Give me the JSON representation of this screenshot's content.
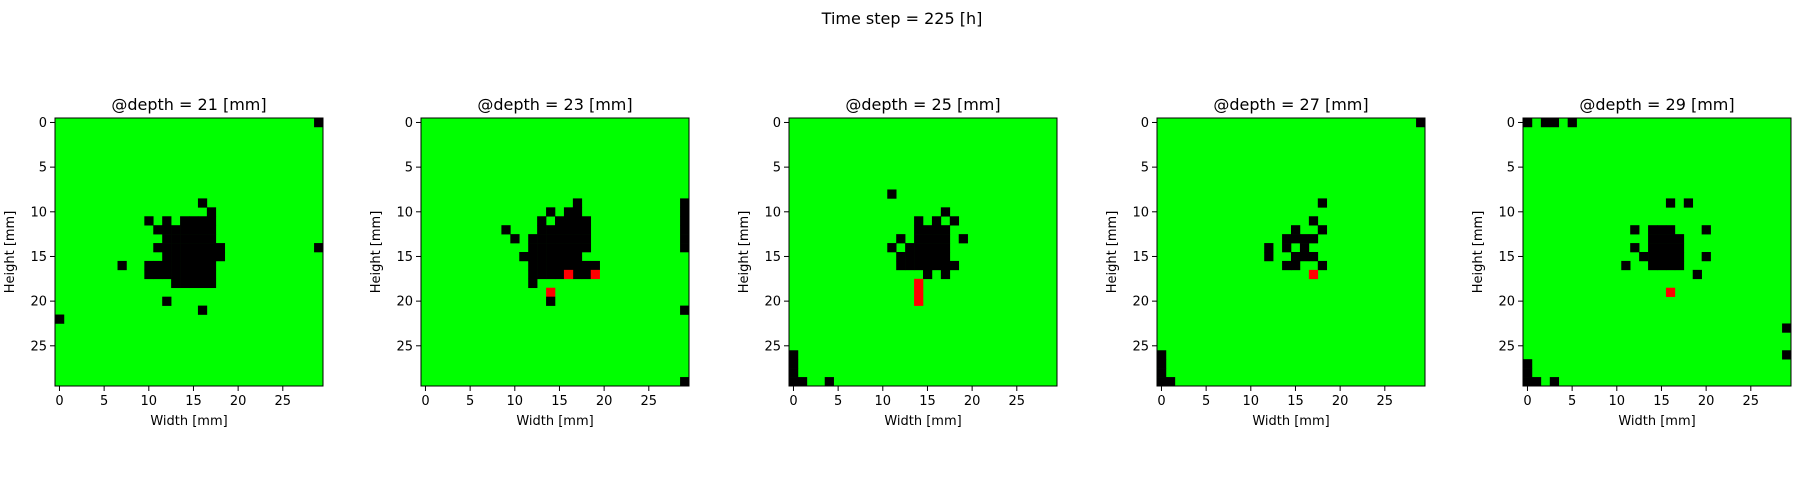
{
  "figure": {
    "suptitle": "Time step = 225 [h]"
  },
  "colors": {
    "healthy": "#00ff00",
    "damaged": "#000000",
    "new_damage": "#ff0000",
    "frame": "#000000",
    "background": "#ffffff"
  },
  "chart_data": [
    {
      "type": "heatmap",
      "title": "@depth = 21 [mm]",
      "xlabel": "Width [mm]",
      "ylabel": "Height [mm]",
      "grid_size": [
        30,
        30
      ],
      "xlim": [
        -0.5,
        29.5
      ],
      "ylim": [
        29.5,
        -0.5
      ],
      "xticks": [
        0,
        5,
        10,
        15,
        20,
        25
      ],
      "yticks": [
        0,
        5,
        10,
        15,
        20,
        25
      ],
      "grid": false,
      "background_value": "healthy",
      "cells": [
        {
          "value": "damaged",
          "x": [
            29
          ],
          "y": [
            0
          ]
        },
        {
          "value": "damaged",
          "x": [
            16
          ],
          "y": [
            9
          ]
        },
        {
          "value": "damaged",
          "x": [
            17
          ],
          "y": [
            10
          ]
        },
        {
          "value": "damaged",
          "x": [
            10,
            12,
            14,
            15,
            16,
            17
          ],
          "y": [
            11
          ]
        },
        {
          "value": "damaged",
          "x": [
            11,
            12,
            13,
            14,
            15,
            16,
            17
          ],
          "y": [
            12
          ]
        },
        {
          "value": "damaged",
          "x": [
            12,
            13,
            14,
            15,
            16,
            17
          ],
          "y": [
            13
          ]
        },
        {
          "value": "damaged",
          "x": [
            11,
            12,
            13,
            14,
            15,
            16,
            17,
            18
          ],
          "y": [
            14
          ]
        },
        {
          "value": "damaged",
          "x": [
            29
          ],
          "y": [
            14
          ]
        },
        {
          "value": "damaged",
          "x": [
            12,
            13,
            14,
            15,
            16,
            17,
            18
          ],
          "y": [
            15
          ]
        },
        {
          "value": "damaged",
          "x": [
            7
          ],
          "y": [
            16
          ]
        },
        {
          "value": "damaged",
          "x": [
            10,
            11,
            12,
            13,
            14,
            15,
            16,
            17
          ],
          "y": [
            16
          ]
        },
        {
          "value": "damaged",
          "x": [
            10,
            11,
            12,
            13,
            14,
            15,
            16,
            17
          ],
          "y": [
            17
          ]
        },
        {
          "value": "damaged",
          "x": [
            13,
            14,
            15,
            16,
            17
          ],
          "y": [
            18
          ]
        },
        {
          "value": "damaged",
          "x": [
            12
          ],
          "y": [
            20
          ]
        },
        {
          "value": "damaged",
          "x": [
            16
          ],
          "y": [
            21
          ]
        },
        {
          "value": "damaged",
          "x": [
            0
          ],
          "y": [
            22
          ]
        }
      ]
    },
    {
      "type": "heatmap",
      "title": "@depth = 23 [mm]",
      "xlabel": "Width [mm]",
      "ylabel": "Height [mm]",
      "grid_size": [
        30,
        30
      ],
      "xlim": [
        -0.5,
        29.5
      ],
      "ylim": [
        29.5,
        -0.5
      ],
      "xticks": [
        0,
        5,
        10,
        15,
        20,
        25
      ],
      "yticks": [
        0,
        5,
        10,
        15,
        20,
        25
      ],
      "grid": false,
      "background_value": "healthy",
      "cells": [
        {
          "value": "damaged",
          "x": [
            29
          ],
          "y": [
            9,
            10,
            11,
            12,
            13,
            14
          ]
        },
        {
          "value": "damaged",
          "x": [
            17
          ],
          "y": [
            9
          ]
        },
        {
          "value": "damaged",
          "x": [
            14,
            16,
            17
          ],
          "y": [
            10
          ]
        },
        {
          "value": "damaged",
          "x": [
            13,
            15,
            16,
            17,
            18
          ],
          "y": [
            11
          ]
        },
        {
          "value": "damaged",
          "x": [
            9,
            13,
            14,
            15,
            16,
            17,
            18
          ],
          "y": [
            12
          ]
        },
        {
          "value": "damaged",
          "x": [
            10,
            12,
            13,
            14,
            15,
            16,
            17,
            18
          ],
          "y": [
            13
          ]
        },
        {
          "value": "damaged",
          "x": [
            12,
            13,
            14,
            15,
            16,
            17,
            18
          ],
          "y": [
            14
          ]
        },
        {
          "value": "damaged",
          "x": [
            11,
            12,
            13,
            14,
            15,
            16,
            17
          ],
          "y": [
            15
          ]
        },
        {
          "value": "damaged",
          "x": [
            12,
            13,
            14,
            15,
            16,
            17,
            18,
            19
          ],
          "y": [
            16
          ]
        },
        {
          "value": "damaged",
          "x": [
            12,
            13,
            14,
            15,
            17,
            18
          ],
          "y": [
            17
          ]
        },
        {
          "value": "new_damage",
          "x": [
            16,
            19
          ],
          "y": [
            17
          ]
        },
        {
          "value": "damaged",
          "x": [
            12
          ],
          "y": [
            18
          ]
        },
        {
          "value": "new_damage",
          "x": [
            14
          ],
          "y": [
            19
          ]
        },
        {
          "value": "damaged",
          "x": [
            14
          ],
          "y": [
            20
          ]
        },
        {
          "value": "damaged",
          "x": [
            29
          ],
          "y": [
            21
          ]
        },
        {
          "value": "damaged",
          "x": [
            29
          ],
          "y": [
            29
          ]
        }
      ]
    },
    {
      "type": "heatmap",
      "title": "@depth = 25 [mm]",
      "xlabel": "Width [mm]",
      "ylabel": "Height [mm]",
      "grid_size": [
        30,
        30
      ],
      "xlim": [
        -0.5,
        29.5
      ],
      "ylim": [
        29.5,
        -0.5
      ],
      "xticks": [
        0,
        5,
        10,
        15,
        20,
        25
      ],
      "yticks": [
        0,
        5,
        10,
        15,
        20,
        25
      ],
      "grid": false,
      "background_value": "healthy",
      "cells": [
        {
          "value": "damaged",
          "x": [
            11
          ],
          "y": [
            8
          ]
        },
        {
          "value": "damaged",
          "x": [
            17
          ],
          "y": [
            10
          ]
        },
        {
          "value": "damaged",
          "x": [
            14,
            16,
            18
          ],
          "y": [
            11
          ]
        },
        {
          "value": "damaged",
          "x": [
            14,
            15,
            16,
            17
          ],
          "y": [
            12
          ]
        },
        {
          "value": "damaged",
          "x": [
            12,
            14,
            15,
            16,
            17,
            19
          ],
          "y": [
            13
          ]
        },
        {
          "value": "damaged",
          "x": [
            11,
            13,
            14,
            15,
            16,
            17
          ],
          "y": [
            14
          ]
        },
        {
          "value": "damaged",
          "x": [
            12,
            13,
            14,
            15,
            16,
            17
          ],
          "y": [
            15
          ]
        },
        {
          "value": "damaged",
          "x": [
            12,
            13,
            14,
            15,
            16,
            17,
            18
          ],
          "y": [
            16
          ]
        },
        {
          "value": "damaged",
          "x": [
            15,
            17
          ],
          "y": [
            17
          ]
        },
        {
          "value": "new_damage",
          "x": [
            14
          ],
          "y": [
            18,
            19,
            20
          ]
        },
        {
          "value": "damaged",
          "x": [
            0
          ],
          "y": [
            26,
            27,
            28,
            29
          ]
        },
        {
          "value": "damaged",
          "x": [
            1
          ],
          "y": [
            29
          ]
        },
        {
          "value": "damaged",
          "x": [
            4
          ],
          "y": [
            29
          ]
        }
      ]
    },
    {
      "type": "heatmap",
      "title": "@depth = 27 [mm]",
      "xlabel": "Width [mm]",
      "ylabel": "Height [mm]",
      "grid_size": [
        30,
        30
      ],
      "xlim": [
        -0.5,
        29.5
      ],
      "ylim": [
        29.5,
        -0.5
      ],
      "xticks": [
        0,
        5,
        10,
        15,
        20,
        25
      ],
      "yticks": [
        0,
        5,
        10,
        15,
        20,
        25
      ],
      "grid": false,
      "background_value": "healthy",
      "cells": [
        {
          "value": "damaged",
          "x": [
            29
          ],
          "y": [
            0
          ]
        },
        {
          "value": "damaged",
          "x": [
            18
          ],
          "y": [
            9
          ]
        },
        {
          "value": "damaged",
          "x": [
            17
          ],
          "y": [
            11
          ]
        },
        {
          "value": "damaged",
          "x": [
            15,
            18
          ],
          "y": [
            12
          ]
        },
        {
          "value": "damaged",
          "x": [
            14,
            15,
            16,
            17
          ],
          "y": [
            13
          ]
        },
        {
          "value": "damaged",
          "x": [
            12,
            14,
            16
          ],
          "y": [
            14
          ]
        },
        {
          "value": "damaged",
          "x": [
            12,
            15,
            16,
            17
          ],
          "y": [
            15
          ]
        },
        {
          "value": "damaged",
          "x": [
            14,
            15,
            18
          ],
          "y": [
            16
          ]
        },
        {
          "value": "new_damage",
          "x": [
            17
          ],
          "y": [
            17
          ]
        },
        {
          "value": "damaged",
          "x": [
            0
          ],
          "y": [
            26,
            27,
            28,
            29
          ]
        },
        {
          "value": "damaged",
          "x": [
            1
          ],
          "y": [
            29
          ]
        }
      ]
    },
    {
      "type": "heatmap",
      "title": "@depth = 29 [mm]",
      "xlabel": "Width [mm]",
      "ylabel": "Height [mm]",
      "grid_size": [
        30,
        30
      ],
      "xlim": [
        -0.5,
        29.5
      ],
      "ylim": [
        29.5,
        -0.5
      ],
      "xticks": [
        0,
        5,
        10,
        15,
        20,
        25
      ],
      "yticks": [
        0,
        5,
        10,
        15,
        20,
        25
      ],
      "grid": false,
      "background_value": "healthy",
      "cells": [
        {
          "value": "damaged",
          "x": [
            0,
            2,
            3,
            5
          ],
          "y": [
            0
          ]
        },
        {
          "value": "damaged",
          "x": [
            16,
            18
          ],
          "y": [
            9
          ]
        },
        {
          "value": "damaged",
          "x": [
            12,
            14,
            15,
            16,
            20
          ],
          "y": [
            12
          ]
        },
        {
          "value": "damaged",
          "x": [
            14,
            15,
            16,
            17
          ],
          "y": [
            13
          ]
        },
        {
          "value": "damaged",
          "x": [
            12,
            14,
            15,
            16,
            17
          ],
          "y": [
            14
          ]
        },
        {
          "value": "damaged",
          "x": [
            13,
            14,
            15,
            16,
            17,
            20
          ],
          "y": [
            15
          ]
        },
        {
          "value": "damaged",
          "x": [
            11,
            14,
            15,
            16,
            17
          ],
          "y": [
            16
          ]
        },
        {
          "value": "damaged",
          "x": [
            19
          ],
          "y": [
            17
          ]
        },
        {
          "value": "new_damage",
          "x": [
            16
          ],
          "y": [
            19
          ]
        },
        {
          "value": "damaged",
          "x": [
            29
          ],
          "y": [
            23
          ]
        },
        {
          "value": "damaged",
          "x": [
            29
          ],
          "y": [
            26
          ]
        },
        {
          "value": "damaged",
          "x": [
            0
          ],
          "y": [
            27,
            28,
            29
          ]
        },
        {
          "value": "damaged",
          "x": [
            1
          ],
          "y": [
            29
          ]
        },
        {
          "value": "damaged",
          "x": [
            3
          ],
          "y": [
            29
          ]
        }
      ]
    }
  ]
}
